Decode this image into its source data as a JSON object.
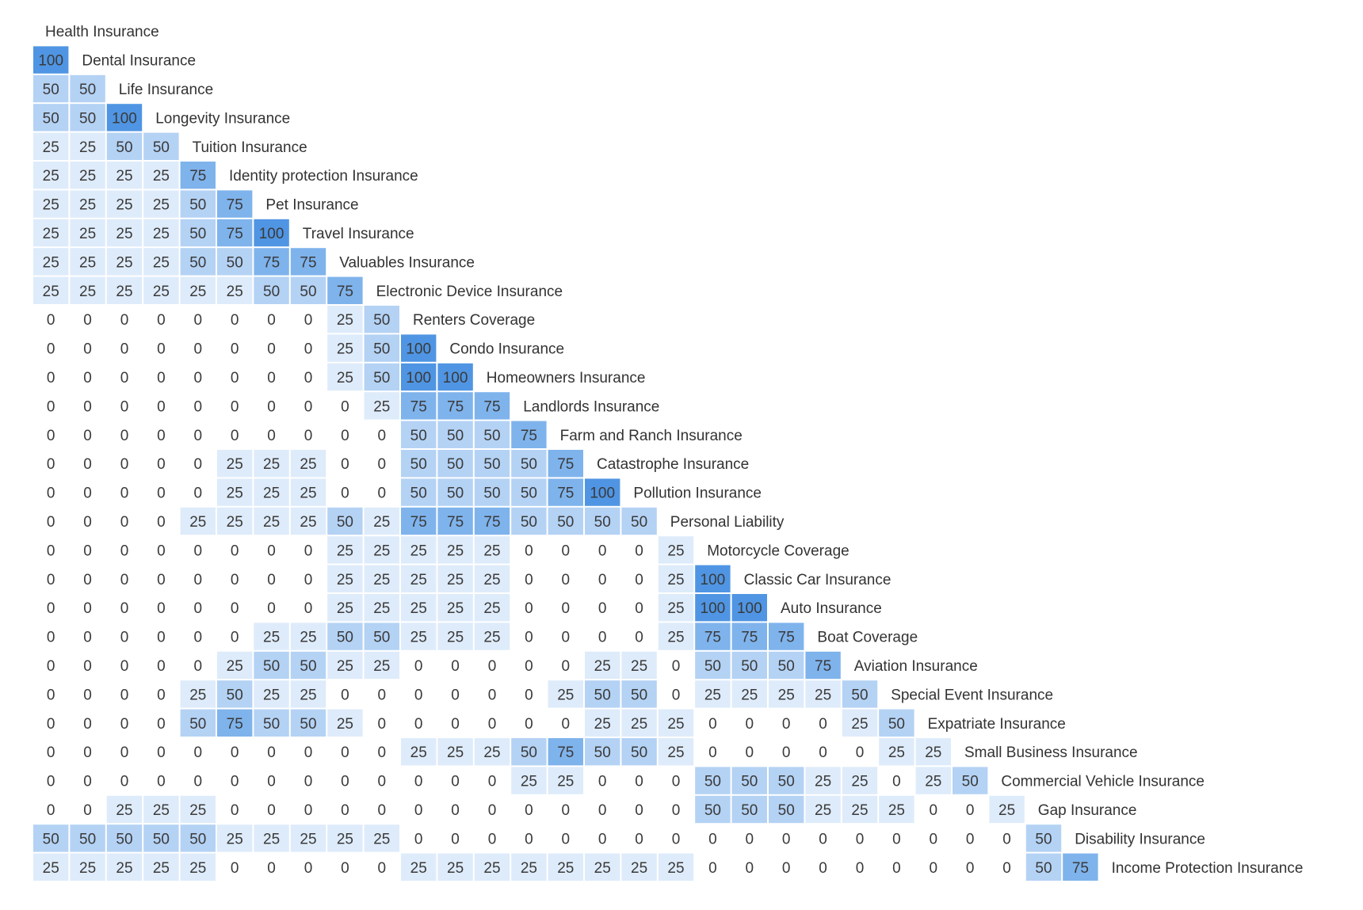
{
  "chart_data": {
    "type": "heatmap",
    "title": "",
    "labels": [
      "Health Insurance",
      "Dental Insurance",
      "Life Insurance",
      "Longevity Insurance",
      "Tuition Insurance",
      "Identity protection Insurance",
      "Pet Insurance",
      "Travel Insurance",
      "Valuables Insurance",
      "Electronic Device Insurance",
      "Renters Coverage",
      "Condo Insurance",
      "Homeowners Insurance",
      "Landlords Insurance",
      "Farm and Ranch Insurance",
      "Catastrophe Insurance",
      "Pollution Insurance",
      "Personal Liability",
      "Motorcycle Coverage",
      "Classic Car Insurance",
      "Auto Insurance",
      "Boat Coverage",
      "Aviation Insurance",
      "Special Event Insurance",
      "Expatriate Insurance",
      "Small Business Insurance",
      "Commercial Vehicle Insurance",
      "Gap Insurance",
      "Disability Insurance",
      "Income Protection Insurance"
    ],
    "matrix": [
      [],
      [
        100
      ],
      [
        50,
        50
      ],
      [
        50,
        50,
        100
      ],
      [
        25,
        25,
        50,
        50
      ],
      [
        25,
        25,
        25,
        25,
        75
      ],
      [
        25,
        25,
        25,
        25,
        50,
        75
      ],
      [
        25,
        25,
        25,
        25,
        50,
        75,
        100
      ],
      [
        25,
        25,
        25,
        25,
        50,
        50,
        75,
        75
      ],
      [
        25,
        25,
        25,
        25,
        25,
        25,
        50,
        50,
        75
      ],
      [
        0,
        0,
        0,
        0,
        0,
        0,
        0,
        0,
        25,
        50
      ],
      [
        0,
        0,
        0,
        0,
        0,
        0,
        0,
        0,
        25,
        50,
        100
      ],
      [
        0,
        0,
        0,
        0,
        0,
        0,
        0,
        0,
        25,
        50,
        100,
        100
      ],
      [
        0,
        0,
        0,
        0,
        0,
        0,
        0,
        0,
        0,
        25,
        75,
        75,
        75
      ],
      [
        0,
        0,
        0,
        0,
        0,
        0,
        0,
        0,
        0,
        0,
        50,
        50,
        50,
        75
      ],
      [
        0,
        0,
        0,
        0,
        0,
        25,
        25,
        25,
        0,
        0,
        50,
        50,
        50,
        50,
        75
      ],
      [
        0,
        0,
        0,
        0,
        0,
        25,
        25,
        25,
        0,
        0,
        50,
        50,
        50,
        50,
        75,
        100
      ],
      [
        0,
        0,
        0,
        0,
        25,
        25,
        25,
        25,
        50,
        25,
        75,
        75,
        75,
        50,
        50,
        50,
        50
      ],
      [
        0,
        0,
        0,
        0,
        0,
        0,
        0,
        0,
        25,
        25,
        25,
        25,
        25,
        0,
        0,
        0,
        0,
        25
      ],
      [
        0,
        0,
        0,
        0,
        0,
        0,
        0,
        0,
        25,
        25,
        25,
        25,
        25,
        0,
        0,
        0,
        0,
        25,
        100
      ],
      [
        0,
        0,
        0,
        0,
        0,
        0,
        0,
        0,
        25,
        25,
        25,
        25,
        25,
        0,
        0,
        0,
        0,
        25,
        100,
        100
      ],
      [
        0,
        0,
        0,
        0,
        0,
        0,
        25,
        25,
        50,
        50,
        25,
        25,
        25,
        0,
        0,
        0,
        0,
        25,
        75,
        75,
        75
      ],
      [
        0,
        0,
        0,
        0,
        0,
        25,
        50,
        50,
        25,
        25,
        0,
        0,
        0,
        0,
        0,
        25,
        25,
        0,
        50,
        50,
        50,
        75
      ],
      [
        0,
        0,
        0,
        0,
        25,
        50,
        25,
        25,
        0,
        0,
        0,
        0,
        0,
        0,
        25,
        50,
        50,
        0,
        25,
        25,
        25,
        25,
        50
      ],
      [
        0,
        0,
        0,
        0,
        50,
        75,
        50,
        50,
        25,
        0,
        0,
        0,
        0,
        0,
        0,
        25,
        25,
        25,
        0,
        0,
        0,
        0,
        25,
        50
      ],
      [
        0,
        0,
        0,
        0,
        0,
        0,
        0,
        0,
        0,
        0,
        25,
        25,
        25,
        50,
        75,
        50,
        50,
        25,
        0,
        0,
        0,
        0,
        0,
        25,
        25
      ],
      [
        0,
        0,
        0,
        0,
        0,
        0,
        0,
        0,
        0,
        0,
        0,
        0,
        0,
        25,
        25,
        0,
        0,
        0,
        50,
        50,
        50,
        25,
        25,
        0,
        25,
        50
      ],
      [
        0,
        0,
        25,
        25,
        25,
        0,
        0,
        0,
        0,
        0,
        0,
        0,
        0,
        0,
        0,
        0,
        0,
        0,
        50,
        50,
        50,
        25,
        25,
        25,
        0,
        0,
        25
      ],
      [
        50,
        50,
        50,
        50,
        50,
        25,
        25,
        25,
        25,
        25,
        0,
        0,
        0,
        0,
        0,
        0,
        0,
        0,
        0,
        0,
        0,
        0,
        0,
        0,
        0,
        0,
        0,
        50
      ],
      [
        25,
        25,
        25,
        25,
        25,
        0,
        0,
        0,
        0,
        0,
        25,
        25,
        25,
        25,
        25,
        25,
        25,
        25,
        0,
        0,
        0,
        0,
        0,
        0,
        0,
        0,
        0,
        50,
        75
      ]
    ],
    "colors": {
      "0": "#ffffff",
      "25": "#deebfa",
      "50": "#b4d2f4",
      "75": "#7fb3ec",
      "100": "#4f95e3"
    },
    "grid": false,
    "legend": "none"
  }
}
